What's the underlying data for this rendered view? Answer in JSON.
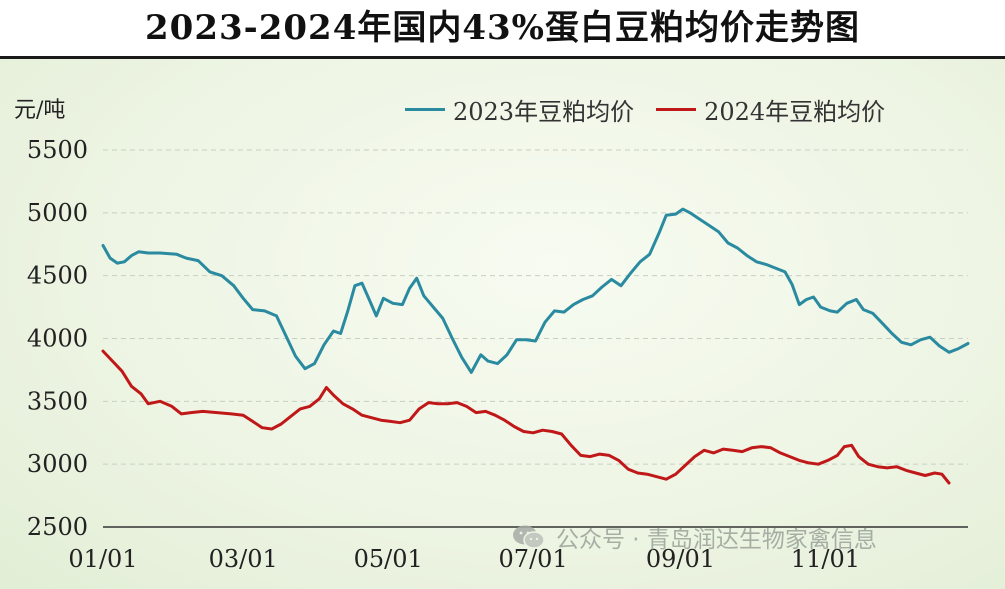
{
  "chart_data": {
    "type": "line",
    "title": "2023-2024年国内43%蛋白豆粕均价走势图",
    "ylabel": "元/吨",
    "xlabel": "",
    "ylim": [
      2500,
      5500
    ],
    "yticks": [
      2500,
      3000,
      3500,
      4000,
      4500,
      5000,
      5500
    ],
    "xticks": [
      "01/01",
      "03/01",
      "05/01",
      "07/01",
      "09/01",
      "11/01"
    ],
    "grid": "horizontal-dashed",
    "legend_position": "top-right",
    "series": [
      {
        "name": "2023年豆粕均价",
        "color": "#2a8aa0",
        "points": [
          [
            "01/01",
            4740
          ],
          [
            "01/04",
            4640
          ],
          [
            "01/07",
            4600
          ],
          [
            "01/10",
            4610
          ],
          [
            "01/13",
            4660
          ],
          [
            "01/16",
            4690
          ],
          [
            "01/20",
            4680
          ],
          [
            "01/25",
            4680
          ],
          [
            "02/01",
            4670
          ],
          [
            "02/05",
            4640
          ],
          [
            "02/10",
            4620
          ],
          [
            "02/15",
            4530
          ],
          [
            "02/20",
            4500
          ],
          [
            "02/25",
            4420
          ],
          [
            "03/01",
            4320
          ],
          [
            "03/05",
            4230
          ],
          [
            "03/10",
            4220
          ],
          [
            "03/15",
            4180
          ],
          [
            "03/19",
            4020
          ],
          [
            "03/23",
            3860
          ],
          [
            "03/27",
            3760
          ],
          [
            "03/31",
            3800
          ],
          [
            "04/04",
            3950
          ],
          [
            "04/08",
            4060
          ],
          [
            "04/11",
            4040
          ],
          [
            "04/14",
            4220
          ],
          [
            "04/17",
            4420
          ],
          [
            "04/20",
            4440
          ],
          [
            "04/23",
            4310
          ],
          [
            "04/26",
            4180
          ],
          [
            "04/29",
            4320
          ],
          [
            "05/03",
            4280
          ],
          [
            "05/07",
            4270
          ],
          [
            "05/10",
            4400
          ],
          [
            "05/13",
            4480
          ],
          [
            "05/16",
            4340
          ],
          [
            "05/20",
            4250
          ],
          [
            "05/24",
            4160
          ],
          [
            "05/28",
            4000
          ],
          [
            "06/01",
            3850
          ],
          [
            "06/05",
            3730
          ],
          [
            "06/09",
            3870
          ],
          [
            "06/12",
            3820
          ],
          [
            "06/16",
            3800
          ],
          [
            "06/20",
            3870
          ],
          [
            "06/24",
            3990
          ],
          [
            "06/28",
            3990
          ],
          [
            "07/02",
            3980
          ],
          [
            "07/06",
            4130
          ],
          [
            "07/10",
            4220
          ],
          [
            "07/14",
            4210
          ],
          [
            "07/18",
            4270
          ],
          [
            "07/22",
            4310
          ],
          [
            "07/26",
            4340
          ],
          [
            "07/30",
            4410
          ],
          [
            "08/03",
            4470
          ],
          [
            "08/07",
            4420
          ],
          [
            "08/11",
            4520
          ],
          [
            "08/15",
            4610
          ],
          [
            "08/19",
            4670
          ],
          [
            "08/23",
            4840
          ],
          [
            "08/26",
            4980
          ],
          [
            "08/30",
            4990
          ],
          [
            "09/02",
            5030
          ],
          [
            "09/05",
            5000
          ],
          [
            "09/09",
            4950
          ],
          [
            "09/13",
            4900
          ],
          [
            "09/17",
            4850
          ],
          [
            "09/21",
            4760
          ],
          [
            "09/25",
            4720
          ],
          [
            "09/29",
            4660
          ],
          [
            "10/03",
            4610
          ],
          [
            "10/07",
            4590
          ],
          [
            "10/11",
            4560
          ],
          [
            "10/15",
            4530
          ],
          [
            "10/18",
            4430
          ],
          [
            "10/21",
            4270
          ],
          [
            "10/24",
            4310
          ],
          [
            "10/27",
            4330
          ],
          [
            "10/30",
            4250
          ],
          [
            "11/03",
            4220
          ],
          [
            "11/06",
            4210
          ],
          [
            "11/10",
            4280
          ],
          [
            "11/14",
            4310
          ],
          [
            "11/17",
            4230
          ],
          [
            "11/21",
            4200
          ],
          [
            "11/25",
            4120
          ],
          [
            "11/29",
            4040
          ],
          [
            "12/03",
            3970
          ],
          [
            "12/07",
            3950
          ],
          [
            "12/11",
            3990
          ],
          [
            "12/15",
            4010
          ],
          [
            "12/19",
            3940
          ],
          [
            "12/23",
            3890
          ],
          [
            "12/27",
            3920
          ],
          [
            "12/31",
            3960
          ]
        ]
      },
      {
        "name": "2024年豆粕均价",
        "color": "#c01818",
        "points": [
          [
            "01/01",
            3900
          ],
          [
            "01/05",
            3820
          ],
          [
            "01/09",
            3740
          ],
          [
            "01/13",
            3620
          ],
          [
            "01/17",
            3560
          ],
          [
            "01/20",
            3480
          ],
          [
            "01/25",
            3500
          ],
          [
            "01/30",
            3460
          ],
          [
            "02/03",
            3400
          ],
          [
            "02/07",
            3410
          ],
          [
            "02/12",
            3420
          ],
          [
            "02/18",
            3410
          ],
          [
            "02/24",
            3400
          ],
          [
            "03/01",
            3390
          ],
          [
            "03/05",
            3340
          ],
          [
            "03/09",
            3290
          ],
          [
            "03/13",
            3280
          ],
          [
            "03/17",
            3320
          ],
          [
            "03/21",
            3380
          ],
          [
            "03/25",
            3440
          ],
          [
            "03/29",
            3460
          ],
          [
            "04/02",
            3520
          ],
          [
            "04/05",
            3610
          ],
          [
            "04/08",
            3550
          ],
          [
            "04/12",
            3480
          ],
          [
            "04/16",
            3440
          ],
          [
            "04/20",
            3390
          ],
          [
            "04/24",
            3370
          ],
          [
            "04/28",
            3350
          ],
          [
            "05/02",
            3340
          ],
          [
            "05/06",
            3330
          ],
          [
            "05/10",
            3350
          ],
          [
            "05/14",
            3440
          ],
          [
            "05/18",
            3490
          ],
          [
            "05/22",
            3480
          ],
          [
            "05/26",
            3480
          ],
          [
            "05/30",
            3490
          ],
          [
            "06/03",
            3460
          ],
          [
            "06/07",
            3410
          ],
          [
            "06/11",
            3420
          ],
          [
            "06/15",
            3390
          ],
          [
            "06/19",
            3350
          ],
          [
            "06/23",
            3300
          ],
          [
            "06/27",
            3260
          ],
          [
            "07/01",
            3250
          ],
          [
            "07/05",
            3270
          ],
          [
            "07/09",
            3260
          ],
          [
            "07/13",
            3240
          ],
          [
            "07/17",
            3150
          ],
          [
            "07/21",
            3070
          ],
          [
            "07/25",
            3060
          ],
          [
            "07/29",
            3080
          ],
          [
            "08/02",
            3070
          ],
          [
            "08/06",
            3030
          ],
          [
            "08/10",
            2960
          ],
          [
            "08/14",
            2930
          ],
          [
            "08/18",
            2920
          ],
          [
            "08/22",
            2900
          ],
          [
            "08/26",
            2880
          ],
          [
            "08/30",
            2920
          ],
          [
            "09/03",
            2990
          ],
          [
            "09/07",
            3060
          ],
          [
            "09/11",
            3110
          ],
          [
            "09/15",
            3090
          ],
          [
            "09/19",
            3120
          ],
          [
            "09/23",
            3110
          ],
          [
            "09/27",
            3100
          ],
          [
            "10/01",
            3130
          ],
          [
            "10/05",
            3140
          ],
          [
            "10/09",
            3130
          ],
          [
            "10/13",
            3090
          ],
          [
            "10/17",
            3060
          ],
          [
            "10/21",
            3030
          ],
          [
            "10/25",
            3010
          ],
          [
            "10/29",
            3000
          ],
          [
            "11/02",
            3030
          ],
          [
            "11/06",
            3070
          ],
          [
            "11/09",
            3140
          ],
          [
            "11/12",
            3150
          ],
          [
            "11/15",
            3060
          ],
          [
            "11/19",
            3000
          ],
          [
            "11/23",
            2980
          ],
          [
            "11/27",
            2970
          ],
          [
            "12/01",
            2980
          ],
          [
            "12/05",
            2950
          ],
          [
            "12/09",
            2930
          ],
          [
            "12/13",
            2910
          ],
          [
            "12/17",
            2930
          ],
          [
            "12/20",
            2920
          ],
          [
            "12/23",
            2850
          ]
        ]
      }
    ]
  },
  "watermark": {
    "text": "公众号 · 青岛润达生物家禽信息",
    "icon": "wechat-icon"
  }
}
